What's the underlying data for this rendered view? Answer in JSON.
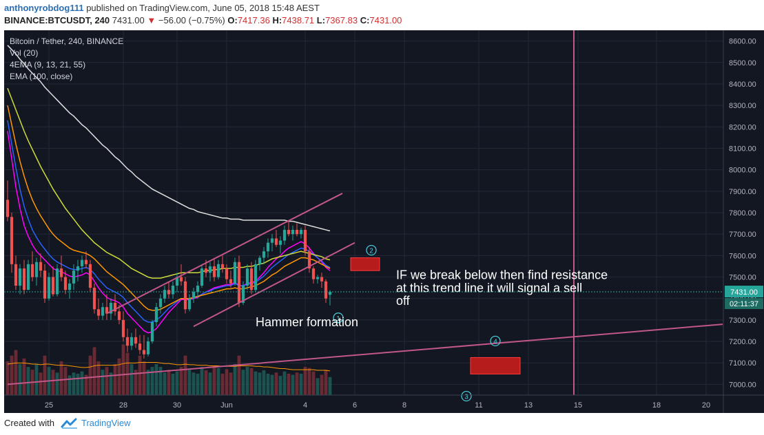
{
  "header": {
    "author": "anthonyrobdog111",
    "published": "published on TradingView.com, June 05, 2018 15:48 AEST",
    "symbol": "BINANCE:BTCUSDT, 240",
    "last": "7431.00",
    "change": "−56.00 (−0.75%)",
    "o_label": "O:",
    "o_value": "7417.36",
    "h_label": "H:",
    "h_value": "7438.71",
    "l_label": "L:",
    "l_value": "7367.83",
    "c_label": "C:",
    "c_value": "7431.00"
  },
  "legend": {
    "title": "Bitcoin / Tether, 240, BINANCE",
    "vol": "Vol (20)",
    "ema4": "4EMA (9, 13, 21, 55)",
    "ema100": "EMA (100, close)"
  },
  "footer": {
    "created_with": "Created with",
    "brand": "TradingView"
  },
  "colors": {
    "background": "#131722",
    "grid": "#232838",
    "up": "#26a69a",
    "down": "#ef5350",
    "trendline": "#c2578a",
    "zone": "#b71c1c",
    "ema_fast": "#ff00ff",
    "ema_mid": "#2962ff",
    "ema_slow": "#ff9800",
    "ema_55": "#cddc39",
    "ema_100": "#e0e0e0"
  },
  "chart_data": {
    "type": "candlestick",
    "title": "Bitcoin / Tether, 240, BINANCE",
    "ylim": [
      6950,
      8650
    ],
    "yticks": [
      7000,
      7100,
      7200,
      7300,
      7400,
      7500,
      7600,
      7700,
      7800,
      7900,
      8000,
      8100,
      8200,
      8300,
      8400,
      8500,
      8600
    ],
    "ytick_labels": [
      "7000.00",
      "7100.00",
      "7200.00",
      "7300.00",
      "7400.00",
      "7500.00",
      "7600.00",
      "7700.00",
      "7800.00",
      "7900.00",
      "8000.00",
      "8100.00",
      "8200.00",
      "8300.00",
      "8400.00",
      "8500.00",
      "8600.00"
    ],
    "xticks": [
      {
        "label": "25",
        "bar": 10
      },
      {
        "label": "28",
        "bar": 28
      },
      {
        "label": "30",
        "bar": 41
      },
      {
        "label": "Jun",
        "bar": 53
      },
      {
        "label": "4",
        "bar": 72
      },
      {
        "label": "6",
        "bar": 84
      },
      {
        "label": "8",
        "bar": 96
      },
      {
        "label": "11",
        "bar": 114
      },
      {
        "label": "13",
        "bar": 126
      },
      {
        "label": "15",
        "bar": 138
      },
      {
        "label": "18",
        "bar": 157
      },
      {
        "label": "20",
        "bar": 169
      }
    ],
    "price_label": "7431.00",
    "price_value": 7431,
    "countdown_label": "02:11:37",
    "candles": [
      [
        7860,
        7950,
        7760,
        7780
      ],
      [
        7780,
        7800,
        7520,
        7560
      ],
      [
        7560,
        7600,
        7440,
        7460
      ],
      [
        7460,
        7560,
        7420,
        7540
      ],
      [
        7540,
        7580,
        7420,
        7440
      ],
      [
        7440,
        7580,
        7440,
        7560
      ],
      [
        7560,
        7620,
        7480,
        7500
      ],
      [
        7500,
        7590,
        7460,
        7570
      ],
      [
        7570,
        7610,
        7500,
        7530
      ],
      [
        7530,
        7560,
        7380,
        7400
      ],
      [
        7400,
        7520,
        7390,
        7500
      ],
      [
        7500,
        7550,
        7410,
        7420
      ],
      [
        7420,
        7560,
        7410,
        7540
      ],
      [
        7540,
        7600,
        7480,
        7500
      ],
      [
        7500,
        7530,
        7420,
        7440
      ],
      [
        7440,
        7490,
        7400,
        7470
      ],
      [
        7470,
        7560,
        7440,
        7530
      ],
      [
        7530,
        7580,
        7480,
        7550
      ],
      [
        7550,
        7600,
        7520,
        7580
      ],
      [
        7580,
        7620,
        7540,
        7560
      ],
      [
        7560,
        7580,
        7430,
        7450
      ],
      [
        7450,
        7470,
        7330,
        7350
      ],
      [
        7350,
        7400,
        7300,
        7320
      ],
      [
        7320,
        7380,
        7300,
        7360
      ],
      [
        7360,
        7420,
        7300,
        7330
      ],
      [
        7330,
        7400,
        7300,
        7380
      ],
      [
        7380,
        7420,
        7320,
        7340
      ],
      [
        7340,
        7370,
        7280,
        7300
      ],
      [
        7300,
        7340,
        7200,
        7220
      ],
      [
        7220,
        7260,
        7150,
        7180
      ],
      [
        7180,
        7240,
        7160,
        7220
      ],
      [
        7220,
        7260,
        7170,
        7190
      ],
      [
        7190,
        7230,
        7140,
        7160
      ],
      [
        7160,
        7230,
        7120,
        7140
      ],
      [
        7140,
        7220,
        7130,
        7200
      ],
      [
        7200,
        7300,
        7190,
        7290
      ],
      [
        7290,
        7380,
        7270,
        7360
      ],
      [
        7360,
        7420,
        7330,
        7400
      ],
      [
        7400,
        7460,
        7380,
        7440
      ],
      [
        7440,
        7480,
        7400,
        7420
      ],
      [
        7420,
        7480,
        7400,
        7460
      ],
      [
        7460,
        7520,
        7430,
        7500
      ],
      [
        7500,
        7560,
        7460,
        7480
      ],
      [
        7480,
        7500,
        7330,
        7350
      ],
      [
        7350,
        7420,
        7340,
        7400
      ],
      [
        7400,
        7450,
        7380,
        7430
      ],
      [
        7430,
        7480,
        7400,
        7460
      ],
      [
        7460,
        7560,
        7450,
        7540
      ],
      [
        7540,
        7580,
        7500,
        7520
      ],
      [
        7520,
        7570,
        7480,
        7550
      ],
      [
        7550,
        7590,
        7480,
        7500
      ],
      [
        7500,
        7580,
        7490,
        7560
      ],
      [
        7560,
        7600,
        7520,
        7540
      ],
      [
        7540,
        7560,
        7470,
        7490
      ],
      [
        7490,
        7530,
        7450,
        7470
      ],
      [
        7470,
        7590,
        7460,
        7570
      ],
      [
        7570,
        7600,
        7360,
        7380
      ],
      [
        7380,
        7480,
        7370,
        7460
      ],
      [
        7460,
        7560,
        7440,
        7540
      ],
      [
        7540,
        7570,
        7420,
        7440
      ],
      [
        7440,
        7580,
        7430,
        7560
      ],
      [
        7560,
        7600,
        7530,
        7590
      ],
      [
        7590,
        7640,
        7560,
        7620
      ],
      [
        7620,
        7680,
        7590,
        7660
      ],
      [
        7660,
        7700,
        7620,
        7680
      ],
      [
        7680,
        7720,
        7640,
        7650
      ],
      [
        7650,
        7690,
        7610,
        7670
      ],
      [
        7670,
        7740,
        7650,
        7720
      ],
      [
        7720,
        7760,
        7690,
        7700
      ],
      [
        7700,
        7740,
        7670,
        7720
      ],
      [
        7720,
        7750,
        7690,
        7700
      ],
      [
        7700,
        7730,
        7680,
        7720
      ],
      [
        7720,
        7740,
        7600,
        7620
      ],
      [
        7620,
        7640,
        7520,
        7540
      ],
      [
        7540,
        7550,
        7470,
        7490
      ],
      [
        7490,
        7510,
        7470,
        7500
      ],
      [
        7500,
        7520,
        7450,
        7480
      ],
      [
        7480,
        7490,
        7380,
        7400
      ],
      [
        7417.36,
        7438.71,
        7367.83,
        7431
      ]
    ],
    "volumes": [
      60,
      70,
      80,
      55,
      65,
      50,
      45,
      55,
      40,
      70,
      50,
      45,
      40,
      60,
      50,
      35,
      40,
      38,
      42,
      36,
      70,
      85,
      60,
      45,
      50,
      40,
      55,
      65,
      90,
      75,
      55,
      45,
      70,
      60,
      45,
      50,
      55,
      50,
      40,
      45,
      38,
      42,
      50,
      70,
      45,
      40,
      38,
      50,
      44,
      40,
      52,
      48,
      38,
      46,
      40,
      55,
      70,
      45,
      50,
      48,
      42,
      40,
      44,
      38,
      36,
      40,
      34,
      42,
      38,
      36,
      40,
      38,
      50,
      48,
      42,
      30,
      36,
      45,
      32
    ],
    "vol_range": [
      0,
      110
    ],
    "ema_series": [
      {
        "name": "EMA 9",
        "color": "#ff00ff",
        "values": [
          8180,
          8050,
          7920,
          7820,
          7740,
          7690,
          7650,
          7620,
          7600,
          7580,
          7560,
          7540,
          7530,
          7525,
          7515,
          7505,
          7500,
          7505,
          7510,
          7520,
          7510,
          7480,
          7450,
          7425,
          7405,
          7395,
          7390,
          7380,
          7360,
          7330,
          7310,
          7290,
          7270,
          7250,
          7240,
          7245,
          7260,
          7285,
          7310,
          7335,
          7355,
          7375,
          7395,
          7395,
          7395,
          7400,
          7405,
          7420,
          7430,
          7440,
          7450,
          7455,
          7460,
          7465,
          7465,
          7475,
          7460,
          7460,
          7470,
          7475,
          7480,
          7500,
          7520,
          7545,
          7565,
          7585,
          7600,
          7620,
          7635,
          7645,
          7655,
          7665,
          7655,
          7635,
          7610,
          7590,
          7570,
          7545,
          7530
        ]
      },
      {
        "name": "EMA 13",
        "color": "#2962ff",
        "values": [
          8230,
          8120,
          8010,
          7910,
          7830,
          7770,
          7720,
          7685,
          7655,
          7630,
          7605,
          7585,
          7570,
          7560,
          7550,
          7540,
          7535,
          7535,
          7540,
          7545,
          7535,
          7515,
          7490,
          7470,
          7450,
          7440,
          7430,
          7420,
          7405,
          7380,
          7360,
          7340,
          7320,
          7300,
          7290,
          7290,
          7300,
          7315,
          7335,
          7355,
          7370,
          7385,
          7400,
          7400,
          7400,
          7405,
          7410,
          7420,
          7430,
          7435,
          7445,
          7450,
          7455,
          7460,
          7460,
          7470,
          7460,
          7460,
          7465,
          7470,
          7475,
          7490,
          7505,
          7525,
          7545,
          7560,
          7575,
          7590,
          7605,
          7615,
          7625,
          7635,
          7630,
          7620,
          7605,
          7590,
          7575,
          7555,
          7545
        ]
      },
      {
        "name": "EMA 21",
        "color": "#ff9800",
        "values": [
          8300,
          8210,
          8120,
          8040,
          7970,
          7910,
          7860,
          7820,
          7785,
          7755,
          7725,
          7700,
          7680,
          7665,
          7650,
          7635,
          7625,
          7620,
          7615,
          7610,
          7600,
          7585,
          7565,
          7545,
          7525,
          7510,
          7495,
          7480,
          7465,
          7445,
          7425,
          7405,
          7385,
          7365,
          7350,
          7345,
          7345,
          7350,
          7360,
          7370,
          7380,
          7390,
          7400,
          7400,
          7400,
          7405,
          7410,
          7415,
          7420,
          7425,
          7430,
          7435,
          7440,
          7445,
          7445,
          7450,
          7445,
          7445,
          7450,
          7455,
          7460,
          7470,
          7480,
          7495,
          7510,
          7520,
          7535,
          7550,
          7560,
          7570,
          7580,
          7590,
          7590,
          7585,
          7580,
          7570,
          7560,
          7550,
          7540
        ]
      },
      {
        "name": "EMA 55",
        "color": "#cddc39",
        "values": [
          8380,
          8330,
          8280,
          8230,
          8180,
          8135,
          8095,
          8055,
          8015,
          7980,
          7945,
          7910,
          7880,
          7850,
          7820,
          7795,
          7770,
          7745,
          7720,
          7700,
          7680,
          7660,
          7645,
          7630,
          7615,
          7605,
          7595,
          7585,
          7570,
          7555,
          7540,
          7530,
          7520,
          7510,
          7500,
          7495,
          7495,
          7495,
          7500,
          7505,
          7510,
          7515,
          7520,
          7520,
          7520,
          7520,
          7520,
          7525,
          7530,
          7530,
          7535,
          7535,
          7540,
          7540,
          7540,
          7545,
          7545,
          7545,
          7550,
          7550,
          7555,
          7560,
          7565,
          7575,
          7585,
          7590,
          7595,
          7600,
          7605,
          7610,
          7615,
          7620,
          7615,
          7610,
          7605,
          7600,
          7595,
          7585,
          7580
        ]
      },
      {
        "name": "EMA 100",
        "color": "#e0e0e0",
        "values": [
          8580,
          8560,
          8540,
          8515,
          8495,
          8470,
          8450,
          8430,
          8410,
          8385,
          8365,
          8345,
          8325,
          8305,
          8285,
          8265,
          8250,
          8230,
          8210,
          8195,
          8175,
          8155,
          8135,
          8115,
          8100,
          8080,
          8060,
          8045,
          8025,
          8005,
          7990,
          7970,
          7955,
          7940,
          7925,
          7910,
          7900,
          7890,
          7880,
          7870,
          7860,
          7850,
          7840,
          7830,
          7820,
          7815,
          7805,
          7800,
          7795,
          7790,
          7785,
          7780,
          7775,
          7775,
          7770,
          7770,
          7770,
          7765,
          7765,
          7765,
          7765,
          7765,
          7765,
          7765,
          7765,
          7765,
          7765,
          7765,
          7760,
          7760,
          7755,
          7750,
          7745,
          7740,
          7735,
          7730,
          7725,
          7720,
          7715
        ]
      }
    ],
    "vol_ma": [
      55,
      56,
      57,
      57,
      57,
      56,
      55,
      55,
      54,
      55,
      55,
      54,
      53,
      53,
      53,
      52,
      51,
      50,
      49,
      49,
      50,
      52,
      53,
      53,
      53,
      53,
      53,
      54,
      56,
      57,
      57,
      57,
      58,
      58,
      58,
      58,
      58,
      57,
      56,
      56,
      55,
      54,
      54,
      55,
      54,
      54,
      53,
      53,
      53,
      52,
      52,
      52,
      51,
      51,
      51,
      51,
      52,
      52,
      52,
      52,
      51,
      51,
      50,
      50,
      49,
      48,
      47,
      47,
      46,
      45,
      45,
      45,
      45,
      45,
      45,
      44,
      44,
      44,
      43
    ],
    "trendlines": [
      {
        "from": [
          24,
          7330
        ],
        "to": [
          81,
          7890
        ]
      },
      {
        "from": [
          45,
          7270
        ],
        "to": [
          84,
          7660
        ]
      },
      {
        "from": [
          0,
          7000
        ],
        "to": [
          173,
          7280
        ]
      }
    ],
    "vertical_line_bar": 137,
    "zones": [
      {
        "bar_start": 83,
        "bar_end": 90,
        "high": 7590,
        "low": 7530
      },
      {
        "bar_start": 112,
        "bar_end": 124,
        "high": 7125,
        "low": 7048
      }
    ],
    "markers": [
      {
        "label": "1",
        "bar": 80,
        "price": 7310
      },
      {
        "label": "2",
        "bar": 88,
        "price": 7625
      },
      {
        "label": "4",
        "bar": 118,
        "price": 7202
      },
      {
        "label": "3",
        "bar": 111,
        "price": 6945
      }
    ],
    "annotations": [
      {
        "text": "Hammer formation",
        "bar": 60,
        "price": 7270
      },
      {
        "text": "IF we break below then find resistance",
        "bar": 94,
        "price": 7490
      },
      {
        "text": "at this trend line it will signal a sell",
        "bar": 94,
        "price": 7430
      },
      {
        "text": "off",
        "bar": 94,
        "price": 7370
      }
    ]
  }
}
